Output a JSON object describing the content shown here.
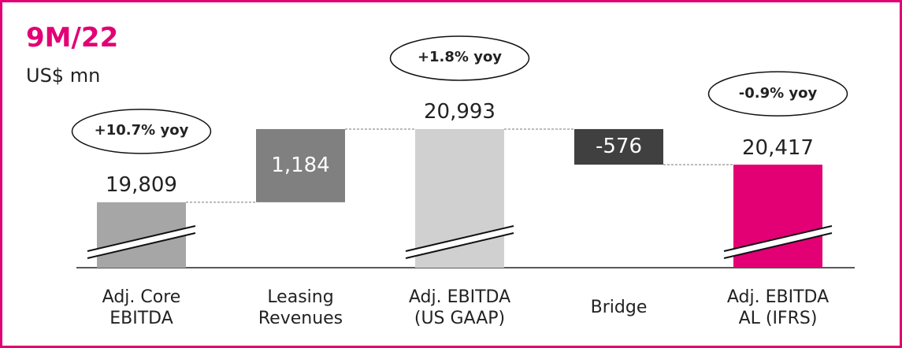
{
  "chart_data": {
    "type": "waterfall",
    "title": "9M/22",
    "subtitle": "US$ mn",
    "categories": [
      "Adj. Core\nEBITDA",
      "Leasing\nRevenues",
      "Adj. EBITDA\n(US GAAP)",
      "Bridge",
      "Adj. EBITDA\nAL (IFRS)"
    ],
    "values": [
      19809,
      1184,
      20993,
      -576,
      20417
    ],
    "value_labels": [
      "19,809",
      "1,184",
      "20,993",
      "-576",
      "20,417"
    ],
    "measure": [
      "total",
      "relative",
      "total",
      "relative",
      "total"
    ],
    "colors": [
      "#a6a6a6",
      "#808080",
      "#d0d0d0",
      "#404040",
      "#e20074"
    ],
    "annotations": [
      {
        "index": 0,
        "text": "+10.7% yoy"
      },
      {
        "index": 2,
        "text": "+1.8% yoy"
      },
      {
        "index": 4,
        "text": "-0.9% yoy"
      }
    ],
    "ylim": [
      18750,
      21400
    ],
    "axis_break": true
  }
}
